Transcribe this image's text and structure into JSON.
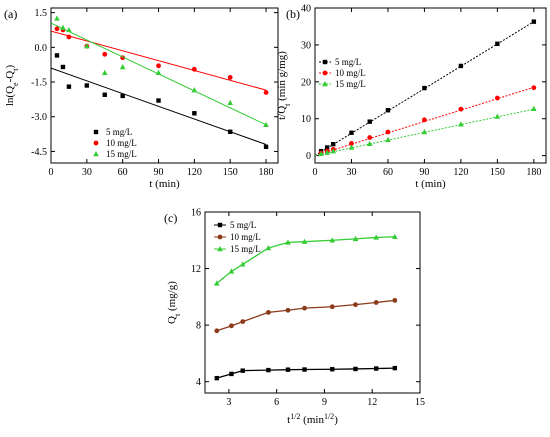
{
  "chart_data": [
    {
      "panel_label": "(a)",
      "type": "scatter",
      "xlabel": "t (min)",
      "ylabel": "ln(Qe-Qt)",
      "xlim": [
        0,
        190
      ],
      "ylim": [
        -5.0,
        1.7
      ],
      "x_ticks": [
        0,
        30,
        60,
        90,
        120,
        150,
        180
      ],
      "y_ticks": [
        1.5,
        0.0,
        -1.5,
        -3.0,
        -4.5
      ],
      "y_tick_labels": [
        "1.5",
        "0.0",
        "-1.5",
        "-3.0",
        "-4.5"
      ],
      "legend_position": "bottom-left",
      "series": [
        {
          "name": "5 mg/L",
          "color": "#000000",
          "marker": "square",
          "x": [
            5,
            10,
            15,
            30,
            45,
            60,
            90,
            120,
            150,
            180
          ],
          "y": [
            -0.35,
            -0.85,
            -1.7,
            -1.65,
            -2.05,
            -2.1,
            -2.3,
            -2.85,
            -3.65,
            -4.3
          ],
          "fit": [
            [
              0,
              -0.9
            ],
            [
              180,
              -4.2
            ]
          ]
        },
        {
          "name": "10 mg/L",
          "color": "#ff0000",
          "marker": "circle",
          "x": [
            5,
            10,
            15,
            30,
            45,
            60,
            90,
            120,
            150,
            180
          ],
          "y": [
            0.8,
            0.75,
            0.45,
            0.05,
            -0.3,
            -0.45,
            -0.8,
            -0.95,
            -1.3,
            -1.95
          ],
          "fit": [
            [
              0,
              0.7
            ],
            [
              180,
              -1.85
            ]
          ]
        },
        {
          "name": "15 mg/L",
          "color": "#33cc33",
          "marker": "triangle",
          "x": [
            5,
            10,
            15,
            30,
            45,
            60,
            90,
            120,
            150,
            180
          ],
          "y": [
            1.25,
            0.85,
            0.75,
            0.05,
            -1.1,
            -0.85,
            -1.1,
            -1.85,
            -2.4,
            -3.35
          ],
          "fit": [
            [
              0,
              1.05
            ],
            [
              180,
              -3.35
            ]
          ]
        }
      ]
    },
    {
      "panel_label": "(b)",
      "type": "scatter",
      "xlabel": "t (min)",
      "ylabel": "t/Qt (min g/mg)",
      "xlim": [
        0,
        190
      ],
      "ylim": [
        -2,
        40
      ],
      "x_ticks": [
        0,
        30,
        60,
        90,
        120,
        150,
        180
      ],
      "y_ticks": [
        0,
        10,
        20,
        30,
        40
      ],
      "legend_position": "top-left",
      "series": [
        {
          "name": "5 mg/L",
          "color": "#000000",
          "marker": "square",
          "x": [
            5,
            10,
            15,
            30,
            45,
            60,
            90,
            120,
            150,
            180
          ],
          "y": [
            1.2,
            2.2,
            3.1,
            6.2,
            9.2,
            12.3,
            18.3,
            24.3,
            30.3,
            36.3
          ],
          "fit": [
            [
              0,
              0.0
            ],
            [
              180,
              36.3
            ]
          ]
        },
        {
          "name": "10 mg/L",
          "color": "#ff0000",
          "marker": "circle",
          "x": [
            5,
            10,
            15,
            30,
            45,
            60,
            90,
            120,
            150,
            180
          ],
          "y": [
            0.7,
            1.2,
            1.7,
            3.3,
            4.9,
            6.4,
            9.7,
            12.6,
            15.6,
            18.4
          ],
          "fit": [
            [
              0,
              0.0
            ],
            [
              180,
              18.5
            ]
          ]
        },
        {
          "name": "15 mg/L",
          "color": "#33cc33",
          "marker": "triangle",
          "x": [
            5,
            10,
            15,
            30,
            45,
            60,
            90,
            120,
            150,
            180
          ],
          "y": [
            0.5,
            0.8,
            1.2,
            2.2,
            3.2,
            4.3,
            6.4,
            8.5,
            10.6,
            12.7
          ],
          "fit": [
            [
              0,
              0.0
            ],
            [
              180,
              12.6
            ]
          ]
        }
      ]
    },
    {
      "panel_label": "(c)",
      "type": "line",
      "xlabel": "t1/2 (min1/2)",
      "ylabel": "Qt (mg/g)",
      "xlim": [
        1.5,
        15
      ],
      "ylim": [
        3.2,
        16
      ],
      "x_ticks": [
        3,
        6,
        9,
        12,
        15
      ],
      "y_ticks": [
        4,
        8,
        12,
        16
      ],
      "legend_position": "top-left",
      "series": [
        {
          "name": "5 mg/L",
          "color": "#000000",
          "marker": "square",
          "x": [
            2.24,
            3.16,
            3.87,
            5.48,
            6.71,
            7.75,
            9.49,
            10.95,
            12.25,
            13.42
          ],
          "y": [
            4.25,
            4.55,
            4.78,
            4.82,
            4.85,
            4.86,
            4.88,
            4.9,
            4.93,
            4.96
          ]
        },
        {
          "name": "10 mg/L",
          "color": "#8b3a1a",
          "marker": "circle",
          "x": [
            2.24,
            3.16,
            3.87,
            5.48,
            6.71,
            7.75,
            9.49,
            10.95,
            12.25,
            13.42
          ],
          "y": [
            7.6,
            7.95,
            8.25,
            8.9,
            9.05,
            9.2,
            9.3,
            9.45,
            9.6,
            9.75
          ]
        },
        {
          "name": "15 mg/L",
          "color": "#33cc33",
          "marker": "triangle",
          "x": [
            2.24,
            3.16,
            3.87,
            5.48,
            6.71,
            7.75,
            9.49,
            10.95,
            12.25,
            13.42
          ],
          "y": [
            10.95,
            11.8,
            12.3,
            13.45,
            13.85,
            13.9,
            14.0,
            14.1,
            14.2,
            14.25
          ]
        }
      ]
    }
  ]
}
